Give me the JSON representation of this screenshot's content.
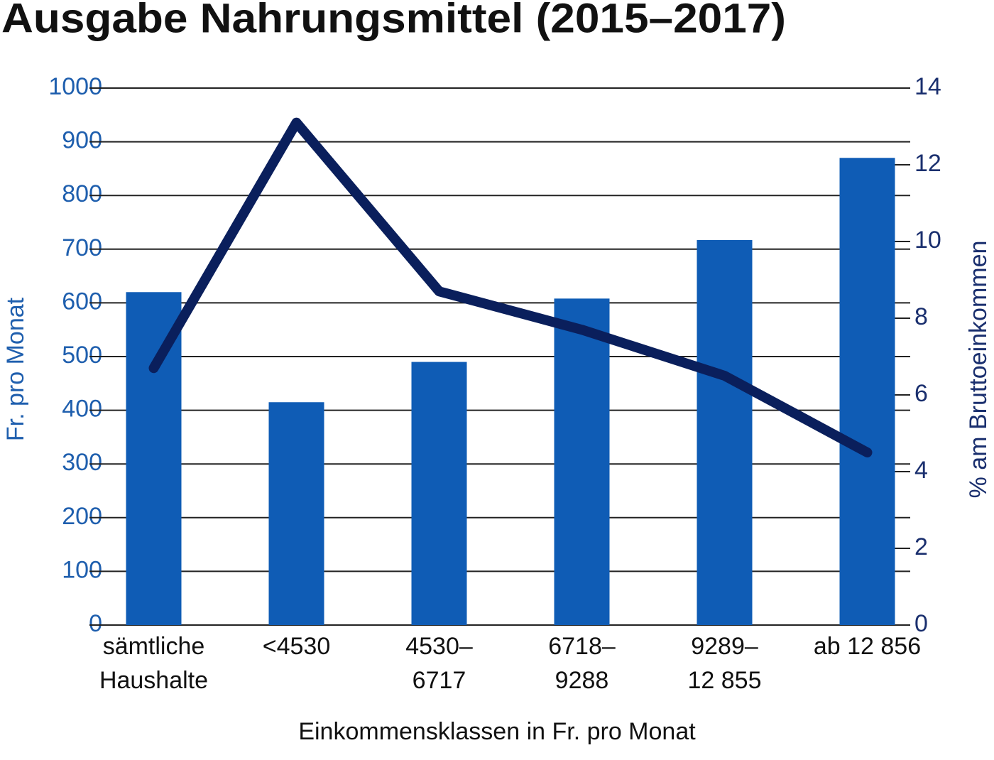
{
  "chart_data": {
    "type": "bar_line",
    "title": "Ausgabe Nahrungsmittel (2015–2017)",
    "x_label": "Einkommensklassen in Fr. pro Monat",
    "y_label": "Fr. pro Monat",
    "y2_label": "% am Bruttoeinkommen",
    "categories": [
      [
        "sämtliche",
        "Haushalte"
      ],
      [
        "<4530"
      ],
      [
        "4530–",
        "6717"
      ],
      [
        "6718–",
        "9288"
      ],
      [
        "9289–",
        "12 855"
      ],
      [
        "ab 12 856"
      ]
    ],
    "series": [
      {
        "type": "bar",
        "color": "#0f5cb5",
        "values": [
          620,
          415,
          490,
          608,
          717,
          870
        ]
      },
      {
        "type": "line",
        "axis": "y2",
        "color": "#0a1f5c",
        "values": [
          6.7,
          13.1,
          8.7,
          7.7,
          6.5,
          4.5
        ]
      }
    ],
    "ylim": [
      0,
      1000
    ],
    "yticks": [
      0,
      100,
      200,
      300,
      400,
      500,
      600,
      700,
      800,
      900,
      1000
    ],
    "y2lim": [
      0,
      14
    ],
    "y2ticks": [
      0,
      2,
      4,
      6,
      8,
      10,
      12,
      14
    ],
    "grid": true
  }
}
